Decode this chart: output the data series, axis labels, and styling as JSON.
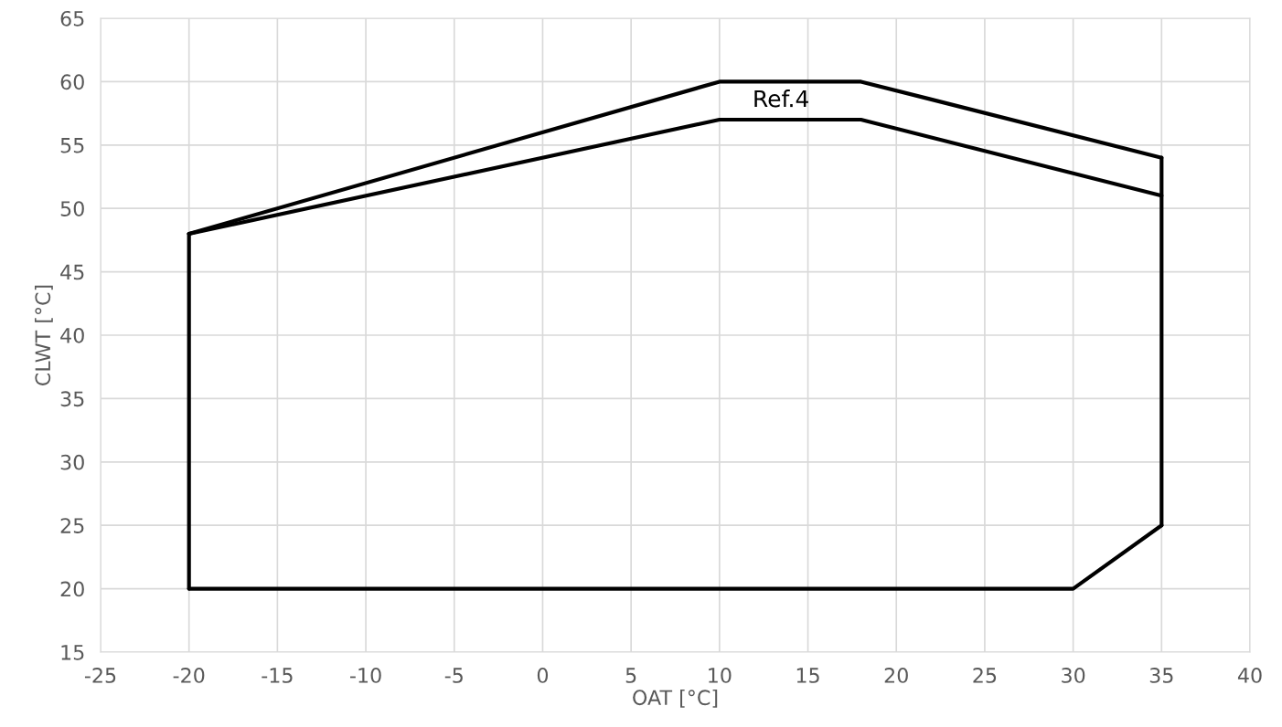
{
  "chart_data": {
    "type": "line",
    "xlabel": "OAT [°C]",
    "ylabel": "CLWT [°C]",
    "series": [
      {
        "color": "#000000",
        "x": [
          -20,
          -20
        ],
        "values": [
          20,
          48
        ]
      },
      {
        "color": "#000000",
        "x": [
          -20,
          10,
          18,
          35
        ],
        "values": [
          48,
          60,
          60,
          54
        ]
      },
      {
        "color": "#000000",
        "x": [
          35,
          35
        ],
        "values": [
          54,
          25
        ]
      },
      {
        "color": "#000000",
        "x": [
          35,
          30,
          -20
        ],
        "values": [
          25,
          20,
          20
        ]
      },
      {
        "color": "#000000",
        "x": [
          -20,
          10,
          18,
          35
        ],
        "values": [
          48,
          57,
          57,
          51
        ]
      }
    ],
    "annotations": [
      "Ref.4"
    ],
    "xlim": [
      -25,
      40
    ],
    "xticks": [
      -25,
      -20,
      -15,
      -10,
      -5,
      0,
      5,
      10,
      15,
      20,
      25,
      30,
      35,
      40
    ],
    "ylim": [
      15,
      65
    ],
    "yticks": [
      15,
      20,
      25,
      30,
      35,
      40,
      45,
      50,
      55,
      60,
      65
    ],
    "grid": true,
    "marker": "none",
    "line_style": "solid"
  }
}
